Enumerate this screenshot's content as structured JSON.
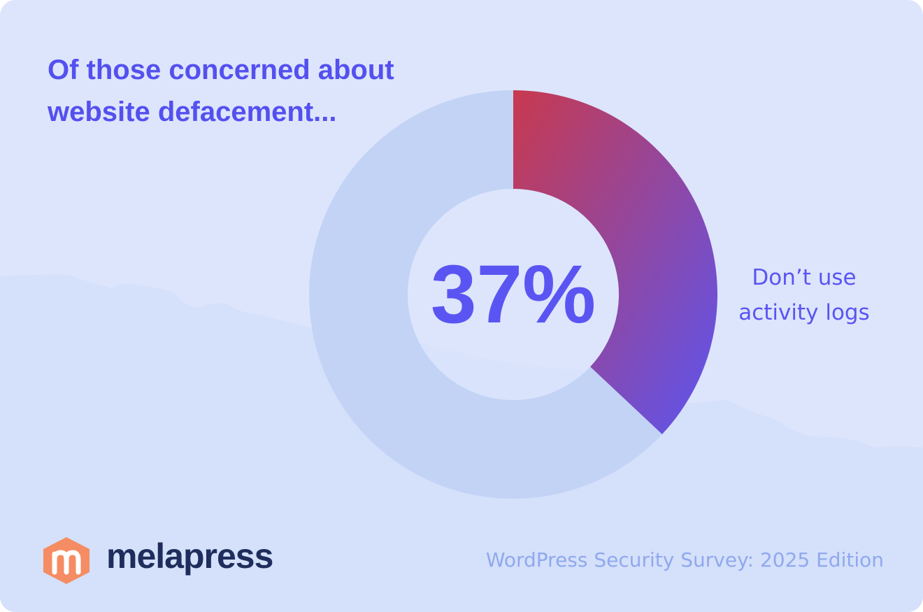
{
  "chart_data": {
    "type": "donut",
    "title": "Of those concerned about website defacement...",
    "categories": [
      "Don’t use activity logs",
      null
    ],
    "values": [
      37,
      63
    ],
    "value_labels": [
      "37%",
      null
    ],
    "colors": [
      "#5b55f1",
      "#c2d3f6"
    ],
    "gradient_start": "#c8394e"
  },
  "brand": "melapress",
  "footer": "WordPress Security Survey: 2025 Edition"
}
